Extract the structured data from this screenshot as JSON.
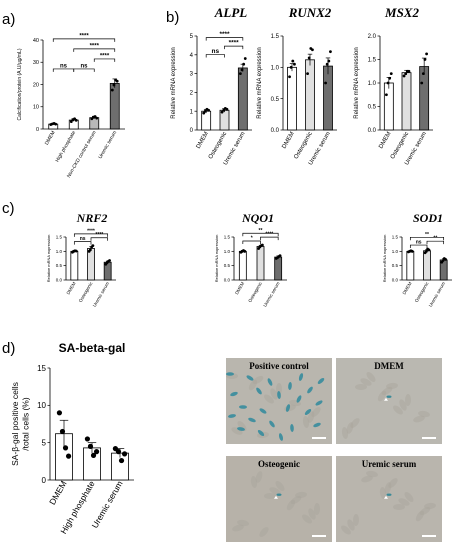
{
  "panel_letters": [
    "a)",
    "b)",
    "c)",
    "d)"
  ],
  "chart_data": [
    {
      "id": "a",
      "type": "bar",
      "title": "",
      "ylabel": "Calcification/protein (A.U/µg/mL)",
      "ylim": [
        0,
        40
      ],
      "yticks": [
        0,
        10,
        20,
        30,
        40
      ],
      "categories": [
        "DMEM",
        "High phosphate",
        "Non-CKD control serum",
        "Uremic serum"
      ],
      "values": [
        2.2,
        4.0,
        5.1,
        20.5
      ],
      "errors": [
        0.3,
        0.6,
        0.6,
        2.0
      ],
      "points": [
        [
          2.0,
          2.3,
          2.5,
          2.2
        ],
        [
          3.3,
          4.2,
          4.6,
          3.9
        ],
        [
          4.6,
          5.3,
          5.6,
          4.9
        ],
        [
          17.5,
          19.8,
          22.0,
          21.5
        ]
      ],
      "bar_colors": [
        "#ffffff",
        "#ffffff",
        "#b9b9b9",
        "#6e6e6e"
      ],
      "brackets": [
        {
          "from": 0,
          "to": 1,
          "level": 1,
          "label": "ns"
        },
        {
          "from": 1,
          "to": 2,
          "level": 1,
          "label": "ns"
        },
        {
          "from": 2,
          "to": 3,
          "level": 2,
          "label": "****"
        },
        {
          "from": 1,
          "to": 3,
          "level": 3,
          "label": "****"
        },
        {
          "from": 0,
          "to": 3,
          "level": 4,
          "label": "****"
        }
      ]
    },
    {
      "id": "b1",
      "type": "bar",
      "title": "ALPL",
      "ylabel": "Relative mRNA expression",
      "ylim": [
        0,
        5
      ],
      "yticks": [
        0,
        1,
        2,
        3,
        4,
        5
      ],
      "categories": [
        "DMEM",
        "Osteogenic",
        "Uremic serum"
      ],
      "values": [
        1.0,
        1.05,
        3.3
      ],
      "errors": [
        0.1,
        0.1,
        0.2
      ],
      "points": [
        [
          0.9,
          1.0,
          1.1,
          1.05
        ],
        [
          0.95,
          1.05,
          1.15,
          1.1
        ],
        [
          3.0,
          3.2,
          3.5,
          3.8
        ]
      ],
      "bar_colors": [
        "#ffffff",
        "#e0e0e0",
        "#6e6e6e"
      ],
      "brackets": [
        {
          "from": 0,
          "to": 1,
          "level": 1,
          "label": "ns"
        },
        {
          "from": 1,
          "to": 2,
          "level": 2,
          "label": "****"
        },
        {
          "from": 0,
          "to": 2,
          "level": 3,
          "label": "****"
        }
      ]
    },
    {
      "id": "b2",
      "type": "bar",
      "title": "RUNX2",
      "ylabel": "Relative mRNA expression",
      "ylim": [
        0,
        1.5
      ],
      "yticks": [
        0.0,
        0.5,
        1.0,
        1.5
      ],
      "categories": [
        "DMEM",
        "Osteogenic",
        "Uremic serum"
      ],
      "values": [
        1.0,
        1.12,
        1.02
      ],
      "errors": [
        0.06,
        0.09,
        0.13
      ],
      "points": [
        [
          0.85,
          1.0,
          1.1,
          1.05
        ],
        [
          0.9,
          1.15,
          1.3,
          1.28
        ],
        [
          0.75,
          1.05,
          1.1,
          1.25
        ]
      ],
      "bar_colors": [
        "#ffffff",
        "#e0e0e0",
        "#6e6e6e"
      ],
      "brackets": []
    },
    {
      "id": "b3",
      "type": "bar",
      "title": "MSX2",
      "ylabel": "Relative mRNA expression",
      "ylim": [
        0,
        2.0
      ],
      "yticks": [
        0.0,
        0.5,
        1.0,
        1.5,
        2.0
      ],
      "categories": [
        "DMEM",
        "Osteogenic",
        "Uremic serum"
      ],
      "values": [
        1.0,
        1.22,
        1.35
      ],
      "errors": [
        0.12,
        0.05,
        0.18
      ],
      "points": [
        [
          0.75,
          1.0,
          1.1,
          1.2
        ],
        [
          1.15,
          1.2,
          1.25,
          1.25
        ],
        [
          1.0,
          1.2,
          1.5,
          1.62
        ]
      ],
      "bar_colors": [
        "#ffffff",
        "#e0e0e0",
        "#6e6e6e"
      ],
      "brackets": []
    },
    {
      "id": "c1",
      "type": "bar",
      "title": "NRF2",
      "ylabel": "Relative mRNA expression",
      "ylim": [
        0,
        1.5
      ],
      "yticks": [
        0.0,
        0.5,
        1.0,
        1.5
      ],
      "categories": [
        "DMEM",
        "Osteogenic",
        "Uremic serum"
      ],
      "values": [
        1.0,
        1.1,
        0.62
      ],
      "errors": [
        0.03,
        0.06,
        0.04
      ],
      "points": [
        [
          0.97,
          1.0,
          1.02,
          1.01
        ],
        [
          1.0,
          1.05,
          1.15,
          1.2
        ],
        [
          0.55,
          0.6,
          0.65,
          0.68
        ]
      ],
      "bar_colors": [
        "#ffffff",
        "#e0e0e0",
        "#6e6e6e"
      ],
      "brackets": [
        {
          "from": 0,
          "to": 1,
          "level": 1,
          "label": "ns"
        },
        {
          "from": 1,
          "to": 2,
          "level": 2,
          "label": "****"
        },
        {
          "from": 0,
          "to": 2,
          "level": 3,
          "label": "****"
        }
      ]
    },
    {
      "id": "c2",
      "type": "bar",
      "title": "NQO1",
      "ylabel": "Relative mRNA expression",
      "ylim": [
        0,
        1.5
      ],
      "yticks": [
        0.0,
        0.5,
        1.0,
        1.5
      ],
      "categories": [
        "DMEM",
        "Osteogenic",
        "Uremic serum"
      ],
      "values": [
        1.0,
        1.17,
        0.8
      ],
      "errors": [
        0.03,
        0.04,
        0.04
      ],
      "points": [
        [
          0.97,
          1.0,
          1.03,
          1.0
        ],
        [
          1.1,
          1.15,
          1.2,
          1.22
        ],
        [
          0.75,
          0.78,
          0.82,
          0.85
        ]
      ],
      "bar_colors": [
        "#ffffff",
        "#e0e0e0",
        "#6e6e6e"
      ],
      "brackets": [
        {
          "from": 0,
          "to": 1,
          "level": 1,
          "label": "*"
        },
        {
          "from": 1,
          "to": 2,
          "level": 2,
          "label": "****"
        },
        {
          "from": 0,
          "to": 2,
          "level": 3,
          "label": "**"
        }
      ]
    },
    {
      "id": "c3",
      "type": "bar",
      "title": "SOD1",
      "ylabel": "Relative mRNA expression",
      "ylim": [
        0,
        1.5
      ],
      "yticks": [
        0.0,
        0.5,
        1.0,
        1.5
      ],
      "categories": [
        "DMEM",
        "Osteogenic",
        "Uremic serum"
      ],
      "values": [
        1.0,
        1.02,
        0.7
      ],
      "errors": [
        0.02,
        0.04,
        0.04
      ],
      "points": [
        [
          0.98,
          1.0,
          1.02,
          1.0
        ],
        [
          0.95,
          1.0,
          1.08,
          1.05
        ],
        [
          0.62,
          0.68,
          0.75,
          0.72
        ]
      ],
      "bar_colors": [
        "#ffffff",
        "#e0e0e0",
        "#6e6e6e"
      ],
      "brackets": [
        {
          "from": 0,
          "to": 1,
          "level": 1,
          "label": "ns"
        },
        {
          "from": 1,
          "to": 2,
          "level": 2,
          "label": "**"
        },
        {
          "from": 0,
          "to": 2,
          "level": 3,
          "label": "**"
        }
      ]
    },
    {
      "id": "d",
      "type": "bar",
      "title": "SA-beta-gal",
      "ylabel": "SA-β-gal positive cells /total cells (%)",
      "ylim": [
        0,
        15
      ],
      "yticks": [
        0,
        5,
        10,
        15
      ],
      "categories": [
        "DMEM",
        "High phosphate",
        "Uremic serum"
      ],
      "values": [
        6.2,
        4.3,
        3.6
      ],
      "errors": [
        1.8,
        0.7,
        0.6
      ],
      "points": [
        [
          9.0,
          6.5,
          4.3,
          3.2
        ],
        [
          5.5,
          4.5,
          3.3,
          3.8
        ],
        [
          4.2,
          3.8,
          2.6,
          3.5
        ]
      ],
      "bar_colors": [
        "#ffffff",
        "#ffffff",
        "#ffffff"
      ],
      "brackets": []
    }
  ],
  "micrographs": [
    {
      "label": "Positive control",
      "bg": "#b9b6ae",
      "stained": true
    },
    {
      "label": "DMEM",
      "bg": "#bab8b1",
      "stained": false
    },
    {
      "label": "Osteogenic",
      "bg": "#b7b2a9",
      "stained": false
    },
    {
      "label": "Uremic serum",
      "bg": "#b9b5ad",
      "stained": false
    }
  ]
}
